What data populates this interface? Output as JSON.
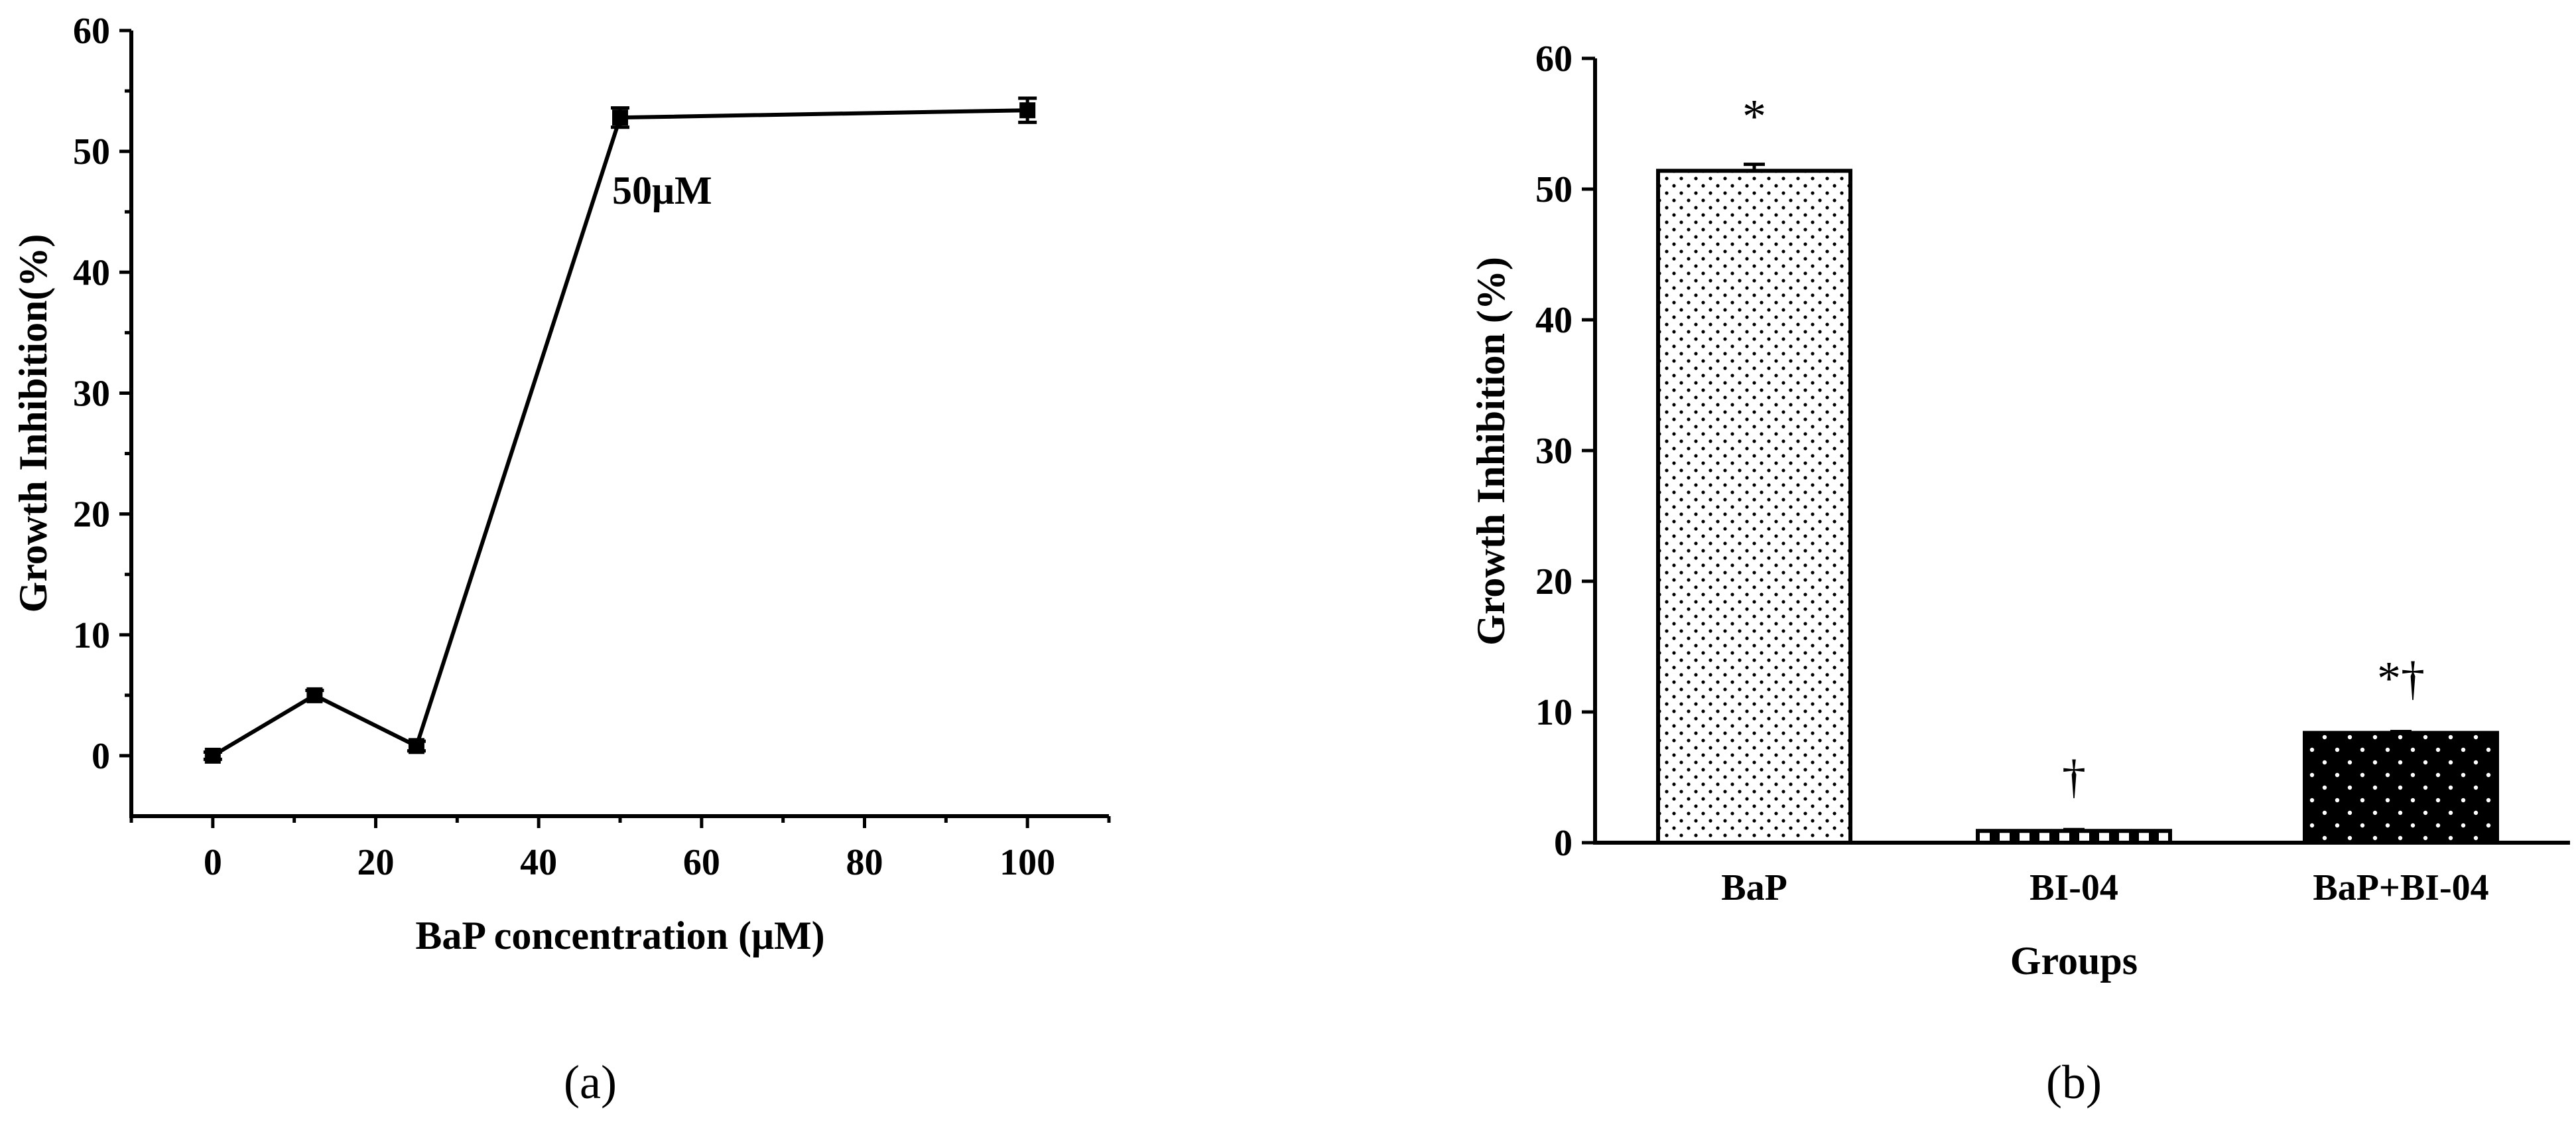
{
  "chart_data": [
    {
      "type": "line",
      "panel_label": "(a)",
      "xlabel": "BaP concentration (μM)",
      "ylabel": "Growth Inhibition(%)",
      "xlim": [
        -10,
        110
      ],
      "ylim": [
        -5,
        60
      ],
      "xticks": [
        0,
        20,
        40,
        60,
        80,
        100
      ],
      "xtick_labels": [
        "0",
        "20",
        "40",
        "60",
        "80",
        "100"
      ],
      "yticks": [
        0,
        10,
        20,
        30,
        40,
        50,
        60
      ],
      "ytick_labels": [
        "0",
        "10",
        "20",
        "30",
        "40",
        "50",
        "60"
      ],
      "series": [
        {
          "name": "Growth Inhibition",
          "x": [
            0,
            12.5,
            25,
            50,
            100
          ],
          "y": [
            0,
            5,
            0.8,
            52.8,
            53.4
          ],
          "err": [
            0.3,
            0.4,
            0.4,
            0.8,
            1.0
          ]
        }
      ],
      "annotation": {
        "text": "50μM",
        "x": 50,
        "y": 52.8
      }
    },
    {
      "type": "bar",
      "panel_label": "(b)",
      "xlabel": "Groups",
      "ylabel": "Growth Inhibition (%)",
      "ylim": [
        0,
        60
      ],
      "yticks": [
        0,
        10,
        20,
        30,
        40,
        50,
        60
      ],
      "ytick_labels": [
        "0",
        "10",
        "20",
        "30",
        "40",
        "50",
        "60"
      ],
      "categories": [
        "BaP",
        "BI-04",
        "BaP+BI-04"
      ],
      "values": [
        51.4,
        0.9,
        8.4
      ],
      "err": [
        0.5,
        0.1,
        0.1
      ],
      "significance": [
        "*",
        "†",
        "*†"
      ],
      "fills": [
        "dots-light",
        "stripes",
        "dots-dark"
      ]
    }
  ]
}
